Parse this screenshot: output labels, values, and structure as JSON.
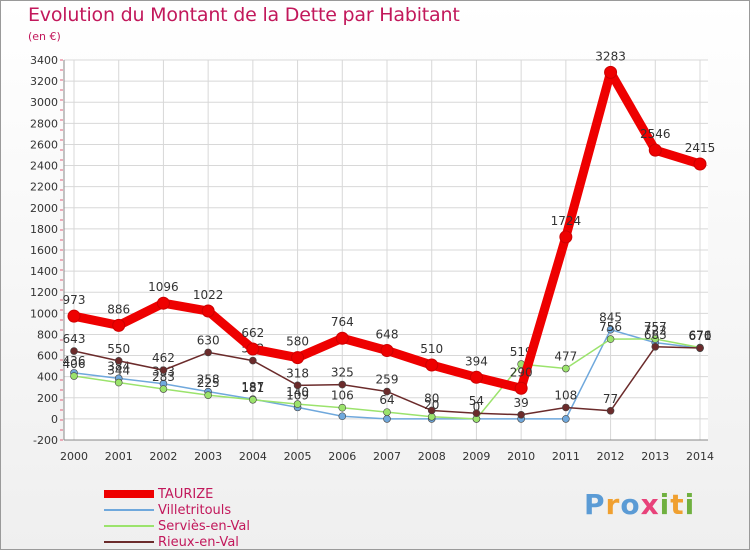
{
  "header": {
    "title": "Evolution du Montant de la Dette par Habitant",
    "subtitle": "(en €)"
  },
  "brand": {
    "text": "Proxiti"
  },
  "chart_data": {
    "type": "line",
    "title": "Evolution du Montant de la Dette par Habitant",
    "subtitle": "(en €)",
    "xlabel": "",
    "ylabel": "",
    "x": [
      "2000",
      "2001",
      "2002",
      "2003",
      "2004",
      "2005",
      "2006",
      "2007",
      "2008",
      "2009",
      "2010",
      "2011",
      "2012",
      "2013",
      "2014"
    ],
    "ylim": [
      -200,
      3400
    ],
    "yticks": [
      -200,
      0,
      200,
      400,
      600,
      800,
      1000,
      1200,
      1400,
      1600,
      1800,
      2000,
      2200,
      2400,
      2600,
      2800,
      3000,
      3200,
      3400
    ],
    "grid": true,
    "legend": "bottom-left",
    "series": [
      {
        "name": "Villetritouls",
        "color": "#6fa8dc",
        "values": [
          436,
          384,
          333,
          258,
          187,
          109,
          25,
          0,
          0,
          0,
          0,
          0,
          845,
          722,
          670
        ],
        "labels": [
          "436",
          "384",
          "333",
          "258",
          "187",
          "109",
          "",
          "",
          "",
          "",
          "",
          "",
          "845",
          "722",
          "670"
        ]
      },
      {
        "name": "Serviès-en-Val",
        "color": "#9be36c",
        "values": [
          406,
          344,
          283,
          225,
          181,
          140,
          106,
          64,
          20,
          0,
          519,
          477,
          756,
          757,
          676
        ],
        "labels": [
          "406",
          "344",
          "283",
          "225",
          "181",
          "140",
          "106",
          "64",
          "20",
          "0",
          "519",
          "477",
          "756",
          "757",
          "676"
        ]
      },
      {
        "name": "Rieux-en-Val",
        "color": "#6b2b2b",
        "values": [
          643,
          550,
          462,
          630,
          552,
          318,
          325,
          259,
          80,
          54,
          39,
          108,
          77,
          683,
          671
        ],
        "labels": [
          "643",
          "550",
          "462",
          "630",
          "552",
          "318",
          "325",
          "259",
          "80",
          "54",
          "39",
          "108",
          "77",
          "683",
          "671"
        ]
      },
      {
        "name": "TAURIZE",
        "color": "#ee0000",
        "values": [
          973,
          886,
          1096,
          1022,
          662,
          580,
          764,
          648,
          510,
          394,
          290,
          1724,
          3283,
          2546,
          2415
        ],
        "labels": [
          "973",
          "886",
          "1096",
          "1022",
          "662",
          "580",
          "764",
          "648",
          "510",
          "394",
          "290",
          "1724",
          "3283",
          "2546",
          "2415"
        ]
      }
    ]
  },
  "legend": {
    "items": [
      {
        "label": "TAURIZE",
        "color": "#ee0000"
      },
      {
        "label": "Villetritouls",
        "color": "#6fa8dc"
      },
      {
        "label": "Serviès-en-Val",
        "color": "#9be36c"
      },
      {
        "label": "Rieux-en-Val",
        "color": "#6b2b2b"
      }
    ]
  }
}
